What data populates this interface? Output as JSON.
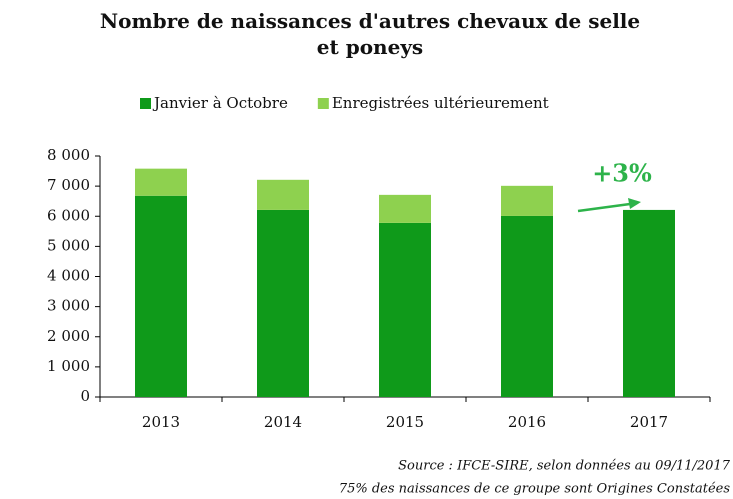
{
  "chart_data": {
    "type": "stacked_bar",
    "title": "Nombre de naissances d'autres chevaux de selle et poneys",
    "categories": [
      "2013",
      "2014",
      "2015",
      "2016",
      "2017"
    ],
    "series": [
      {
        "name": "Janvier à Octobre",
        "color": "#0f9a1a",
        "values": [
          6680,
          6210,
          5780,
          6010,
          6210
        ]
      },
      {
        "name": "Enregistrées ultérieurement",
        "color": "#8ed14f",
        "values": [
          900,
          1000,
          930,
          1000,
          null
        ]
      }
    ],
    "ylim": [
      0,
      8000
    ],
    "yticks": [
      0,
      {
        "value": 1000,
        "label": "1 000"
      },
      {
        "value": 2000,
        "label": "2 000"
      },
      {
        "value": 3000,
        "label": "3 000"
      },
      {
        "value": 4000,
        "label": "4 000"
      },
      {
        "value": 5000,
        "label": "5 000"
      },
      {
        "value": 6000,
        "label": "6 000"
      },
      {
        "value": 7000,
        "label": "7 000"
      },
      {
        "value": 8000,
        "label": "8 000"
      }
    ],
    "annotation": "+3%",
    "annotation_color": "#2db34a",
    "source": "Source : IFCE-SIRE, selon données au 09/11/2017",
    "note": "75% des naissances de ce groupe sont Origines Constatées"
  }
}
